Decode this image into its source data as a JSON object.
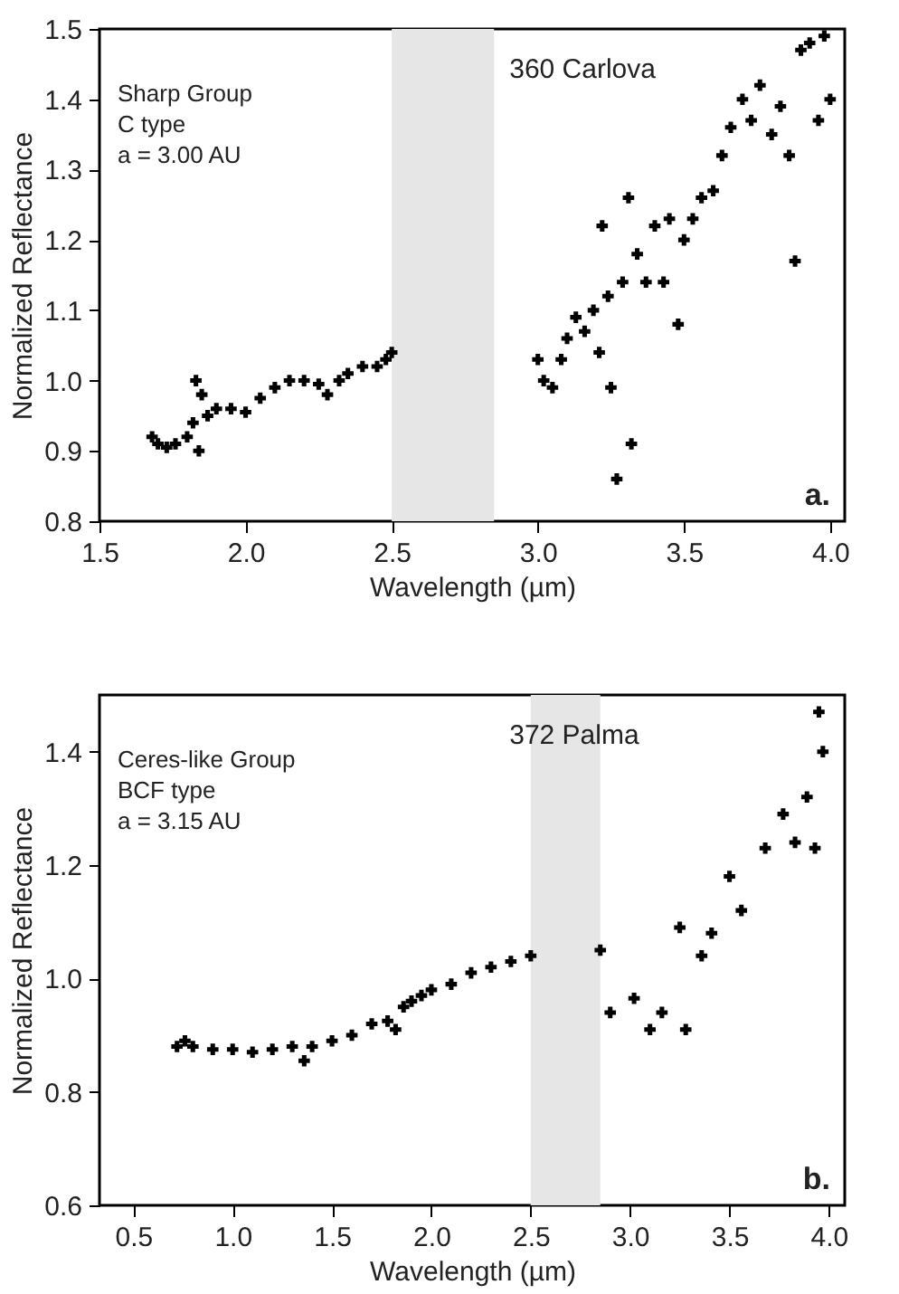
{
  "chart_data": [
    {
      "type": "scatter",
      "title": "360 Carlova",
      "xlabel": "Wavelength (µm)",
      "ylabel": "Normalized Reflectance",
      "annotations": [
        "Sharp Group",
        "C type",
        "a = 3.00 AU",
        "a."
      ],
      "xlim": [
        1.5,
        4.05
      ],
      "ylim": [
        0.8,
        1.5
      ],
      "xticks": [
        {
          "value": 1.5,
          "label": "1.5"
        },
        {
          "value": 2,
          "label": "2.0"
        },
        {
          "value": 2.5,
          "label": "2.5"
        },
        {
          "value": 3,
          "label": "3.0"
        },
        {
          "value": 3.5,
          "label": "3.5"
        },
        {
          "value": 4,
          "label": "4.0"
        }
      ],
      "yticks": [
        {
          "value": 0.8,
          "label": "0.8"
        },
        {
          "value": 0.9,
          "label": "0.9"
        },
        {
          "value": 1,
          "label": "1.0"
        },
        {
          "value": 1.1,
          "label": "1.1"
        },
        {
          "value": 1.2,
          "label": "1.2"
        },
        {
          "value": 1.3,
          "label": "1.3"
        },
        {
          "value": 1.4,
          "label": "1.4"
        },
        {
          "value": 1.5,
          "label": "1.5"
        }
      ],
      "bands": [
        {
          "axis": "x",
          "from": 2.5,
          "to": 2.85,
          "color": "#e6e6e6"
        }
      ],
      "marker": "cross",
      "series": [
        {
          "color": "#000000",
          "x": [
            1.68,
            1.7,
            1.73,
            1.76,
            1.8,
            1.82,
            1.83,
            1.84,
            1.85,
            1.87,
            1.9,
            1.95,
            2.0,
            2.05,
            2.1,
            2.15,
            2.2,
            2.25,
            2.28,
            2.32,
            2.35,
            2.4,
            2.45,
            2.48,
            2.5,
            3.0,
            3.02,
            3.05,
            3.08,
            3.1,
            3.13,
            3.16,
            3.19,
            3.21,
            3.22,
            3.24,
            3.25,
            3.27,
            3.29,
            3.31,
            3.32,
            3.34,
            3.37,
            3.4,
            3.43,
            3.45,
            3.48,
            3.5,
            3.53,
            3.56,
            3.6,
            3.63,
            3.66,
            3.7,
            3.73,
            3.76,
            3.8,
            3.83,
            3.86,
            3.88,
            3.9,
            3.93,
            3.96,
            3.98,
            4.0
          ],
          "values": [
            0.92,
            0.91,
            0.905,
            0.91,
            0.92,
            0.94,
            1.0,
            0.9,
            0.98,
            0.95,
            0.96,
            0.96,
            0.955,
            0.975,
            0.99,
            1.0,
            1.0,
            0.995,
            0.98,
            1.0,
            1.01,
            1.02,
            1.02,
            1.03,
            1.04,
            1.03,
            1.0,
            0.99,
            1.03,
            1.06,
            1.09,
            1.07,
            1.1,
            1.04,
            1.22,
            1.12,
            0.99,
            0.86,
            1.14,
            1.26,
            0.91,
            1.18,
            1.14,
            1.22,
            1.14,
            1.23,
            1.08,
            1.2,
            1.23,
            1.26,
            1.27,
            1.32,
            1.36,
            1.4,
            1.37,
            1.42,
            1.35,
            1.39,
            1.32,
            1.17,
            1.47,
            1.48,
            1.37,
            1.49,
            1.4
          ]
        }
      ]
    },
    {
      "type": "scatter",
      "title": "372 Palma",
      "xlabel": "Wavelength (µm)",
      "ylabel": "Normalized Reflectance",
      "annotations": [
        "Ceres-like Group",
        "BCF type",
        "a = 3.15 AU",
        "b."
      ],
      "xlim": [
        0.33,
        4.08
      ],
      "ylim": [
        0.6,
        1.5
      ],
      "xticks": [
        {
          "value": 0.5,
          "label": "0.5"
        },
        {
          "value": 1,
          "label": "1.0"
        },
        {
          "value": 1.5,
          "label": "1.5"
        },
        {
          "value": 2,
          "label": "2.0"
        },
        {
          "value": 2.5,
          "label": "2.5"
        },
        {
          "value": 3,
          "label": "3.0"
        },
        {
          "value": 3.5,
          "label": "3.5"
        },
        {
          "value": 4,
          "label": "4.0"
        }
      ],
      "yticks": [
        {
          "value": 0.6,
          "label": "0.6"
        },
        {
          "value": 0.8,
          "label": "0.8"
        },
        {
          "value": 1,
          "label": "1.0"
        },
        {
          "value": 1.2,
          "label": "1.2"
        },
        {
          "value": 1.4,
          "label": "1.4"
        }
      ],
      "bands": [
        {
          "axis": "x",
          "from": 2.5,
          "to": 2.85,
          "color": "#e6e6e6"
        }
      ],
      "marker": "cross",
      "series": [
        {
          "color": "#000000",
          "x": [
            0.72,
            0.76,
            0.8,
            0.9,
            1.0,
            1.1,
            1.2,
            1.3,
            1.36,
            1.4,
            1.5,
            1.6,
            1.7,
            1.78,
            1.82,
            1.86,
            1.9,
            1.95,
            2.0,
            2.1,
            2.2,
            2.3,
            2.4,
            2.5,
            2.85,
            2.9,
            3.02,
            3.1,
            3.16,
            3.25,
            3.28,
            3.36,
            3.41,
            3.5,
            3.56,
            3.68,
            3.77,
            3.83,
            3.89,
            3.93,
            3.95,
            3.97
          ],
          "values": [
            0.88,
            0.89,
            0.88,
            0.875,
            0.875,
            0.87,
            0.875,
            0.88,
            0.855,
            0.88,
            0.89,
            0.9,
            0.92,
            0.925,
            0.91,
            0.95,
            0.96,
            0.97,
            0.98,
            0.99,
            1.01,
            1.02,
            1.03,
            1.04,
            1.05,
            0.94,
            0.965,
            0.91,
            0.94,
            1.09,
            0.91,
            1.04,
            1.08,
            1.18,
            1.12,
            1.23,
            1.29,
            1.24,
            1.32,
            1.23,
            1.47,
            1.4
          ]
        }
      ]
    }
  ]
}
